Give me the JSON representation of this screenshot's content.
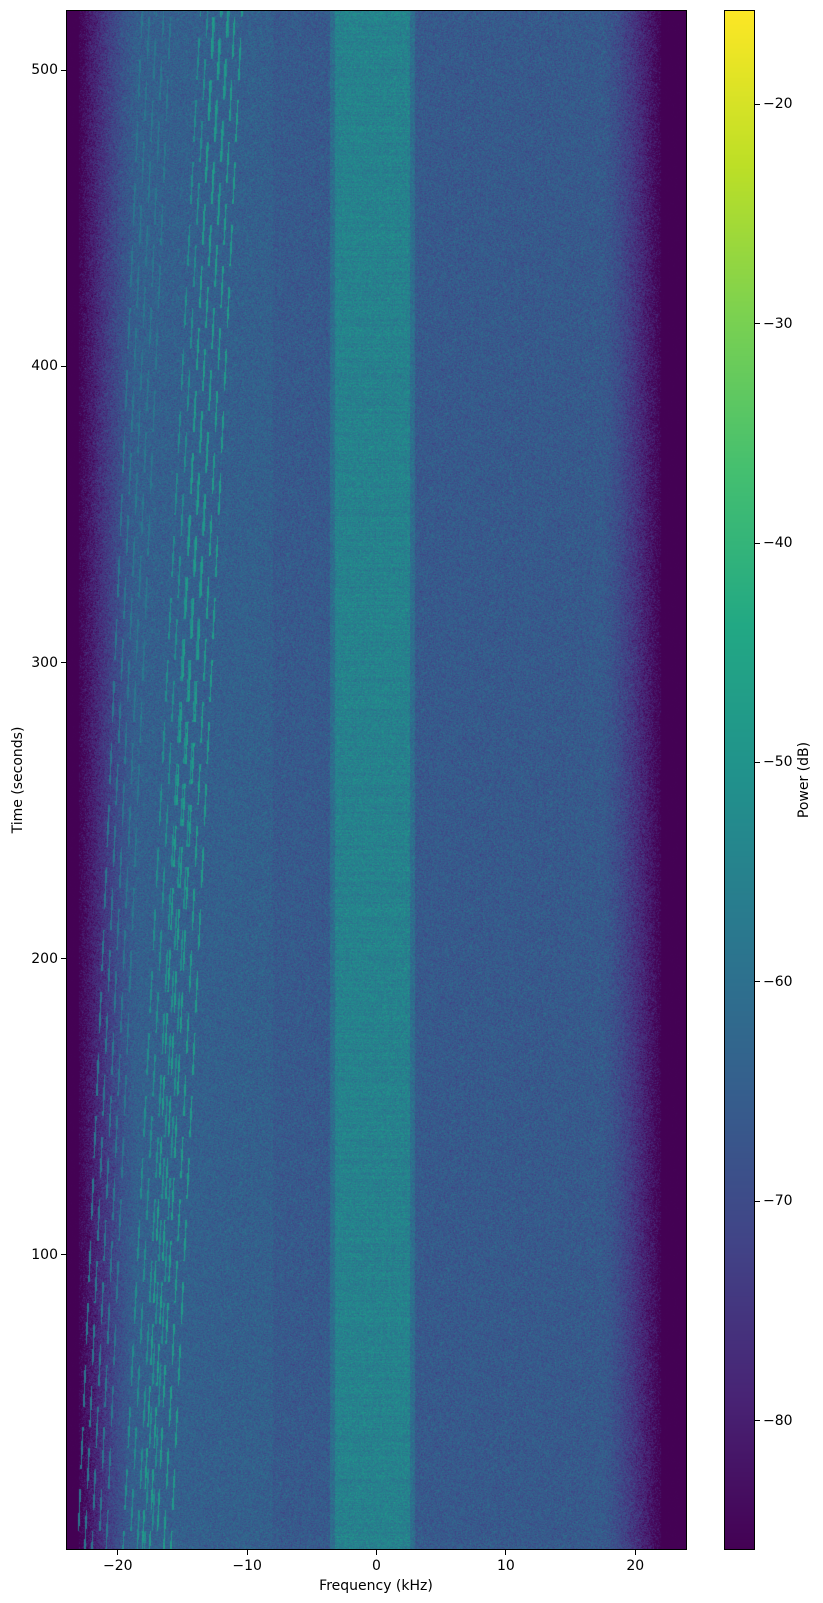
{
  "chart_data": {
    "type": "heatmap",
    "title": "",
    "xlabel": "Frequency (kHz)",
    "ylabel": "Time (seconds)",
    "xlim": [
      -24,
      24
    ],
    "ylim": [
      0.4,
      520.3
    ],
    "xticks": [
      -20,
      -10,
      0,
      10,
      20
    ],
    "xtick_labels": [
      "−20",
      "−10",
      "0",
      "10",
      "20"
    ],
    "yticks": [
      100,
      200,
      300,
      400,
      500
    ],
    "ytick_labels": [
      "100",
      "200",
      "300",
      "400",
      "500"
    ],
    "colormap": "viridis",
    "colorbar": {
      "label": "Power (dB)",
      "range": [
        -85.9,
        -15.7
      ],
      "ticks": [
        -80,
        -70,
        -60,
        -50,
        -40,
        -30,
        -20
      ],
      "tick_labels": [
        "−80",
        "−70",
        "−60",
        "−50",
        "−40",
        "−30",
        "−20"
      ]
    },
    "features": {
      "background_level_db": -66,
      "central_band_khz": [
        -3.2,
        2.6
      ],
      "central_band_level_db": -55,
      "band_edge_khz": 22,
      "out_of_band_level_db": -86,
      "drifting_tones": [
        {
          "start_khz": -17,
          "end_khz": -11.5,
          "time_range": [
            0,
            520
          ],
          "level_db": -48
        },
        {
          "start_khz": -18.5,
          "end_khz": -12.5,
          "time_range": [
            0,
            520
          ],
          "level_db": -52
        },
        {
          "start_khz": -22,
          "end_khz": -17,
          "time_range": [
            0,
            520
          ],
          "level_db": -58
        }
      ]
    },
    "grid": false
  }
}
